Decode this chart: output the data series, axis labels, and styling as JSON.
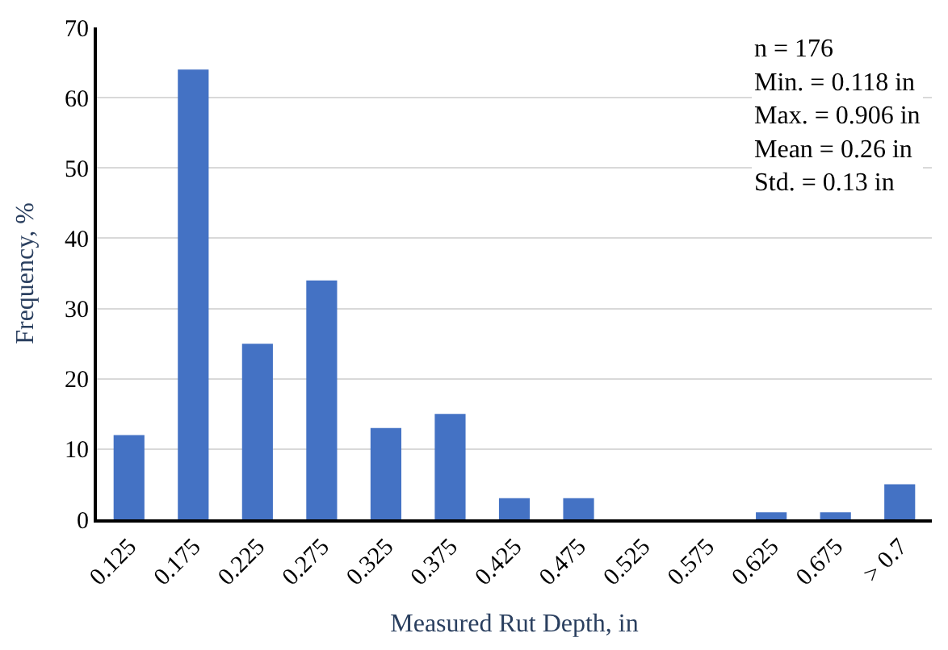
{
  "chart_data": {
    "type": "bar",
    "xlabel": "Measured Rut Depth, in",
    "ylabel": "Frequency, %",
    "categories": [
      "0.125",
      "0.175",
      "0.225",
      "0.275",
      "0.325",
      "0.375",
      "0.425",
      "0.475",
      "0.525",
      "0.575",
      "0.625",
      "0.675",
      "> 0.7"
    ],
    "values": [
      12,
      64,
      25,
      34,
      13,
      15,
      3,
      3,
      0,
      0,
      1,
      1,
      5
    ],
    "color": "#4472c4",
    "ylim": [
      0,
      70
    ],
    "yticks": [
      0,
      10,
      20,
      30,
      40,
      50,
      60,
      70
    ],
    "grid": "y",
    "annotations": [
      "n = 176\nMin. = 0.118 in\nMax. = 0.906 in\nMean = 0.26 in\nStd. = 0.13 in"
    ]
  }
}
